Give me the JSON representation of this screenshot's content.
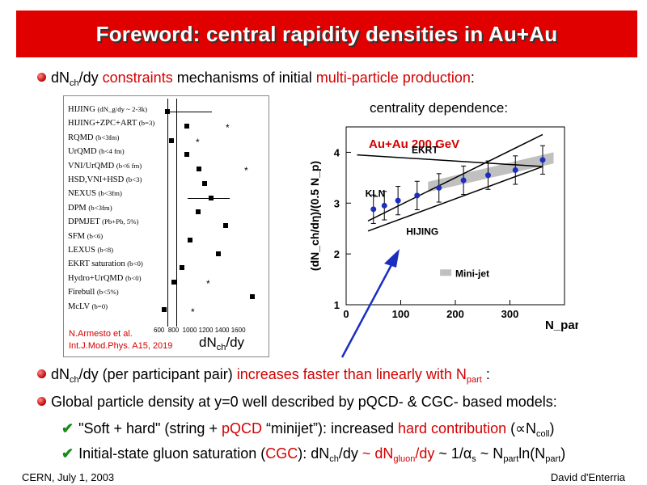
{
  "title": "Foreword: central rapidity densities in Au+Au",
  "bullet1": {
    "pre": "dN",
    "sub": "ch",
    "mid": "/dy ",
    "red1": "constraints",
    "mid2": " mechanisms of initial ",
    "red2": "multi-particle production",
    "post": ":"
  },
  "left_panel": {
    "models": [
      "HIJING",
      "HIJING+ZPC+ART",
      "RQMD",
      "UrQMD",
      "VNI/UrQMD",
      "HSD,VNI+HSD",
      "NEXUS",
      "DPM",
      "DPMJET",
      "SFM",
      "LEXUS",
      "EKRT saturation",
      "Hydro+UrQMD",
      "Firebull",
      "McLV"
    ],
    "model_notes": [
      "(dN_g/dy ~ 2-3k)",
      "(b=3)",
      "(b<3fm)",
      "(b<4 fm)",
      "(b<6 fm)",
      "(b<3)",
      "(b<3fm)",
      "(b<3fm)",
      "(Pb+Pb, 5%)",
      "(b<6)",
      "(b<8)",
      "(b<0)",
      "(b<0)",
      "(b<5%)",
      "(b=0)"
    ],
    "x_ticks": [
      "600",
      "800",
      "1000",
      "1200",
      "1400",
      "1600"
    ],
    "ref_line1": "N.Armesto et al.",
    "ref_line2": "Int.J.Mod.Phys. A15, 2019",
    "dndy_pre": "dN",
    "dndy_sub": "ch",
    "dndy_post": "/dy"
  },
  "centrality_label": "centrality dependence:",
  "chart_data": {
    "type": "scatter",
    "title": "Au+Au 200 GeV",
    "ylabel": "(dN_ch/dη)/(0.5 N_p)",
    "xlabel": "N_part",
    "xlim": [
      0,
      400
    ],
    "ylim": [
      1,
      4.5
    ],
    "x_ticks": [
      "0",
      "100",
      "200",
      "300"
    ],
    "y_ticks": [
      "1",
      "2",
      "3",
      "4"
    ],
    "series": [
      {
        "name": "",
        "x": [
          50,
          70,
          95,
          130,
          170,
          215,
          260,
          310,
          360
        ],
        "y": [
          2.88,
          2.95,
          3.05,
          3.15,
          3.3,
          3.45,
          3.55,
          3.65,
          3.85
        ]
      }
    ],
    "annotations": [
      "EKRT",
      "KLN",
      "HIJING",
      "Mini-jet"
    ],
    "colors": {
      "points": "#1a2fc0",
      "title": "#d40000",
      "arrow": "#1a2fc0",
      "band": "#c0c0c0"
    }
  },
  "bullet2": {
    "pre": "dN",
    "sub": "ch",
    "mid": "/dy (per participant pair) ",
    "red": "increases faster than linearly with N",
    "red_sub": "part",
    "post": " :"
  },
  "bullet3": "Global particle density at y=0 well described by pQCD- & CGC- based models:",
  "check1": {
    "a": "\"Soft + hard\" (string + ",
    "red1": "pQCD",
    "b": " “minijet”): increased ",
    "red2": "hard contribution",
    "c": " (∝N",
    "sub": "coll",
    "d": ")"
  },
  "check2": {
    "a": "Initial-state gluon saturation (",
    "red1": "CGC",
    "b": "): dN",
    "sub1": "ch",
    "c": "/dy ",
    "red2": "~ dN",
    "red_sub": "gluon",
    "red3": "/dy",
    "d": " ~ 1/α",
    "sub2": "s",
    "e": " ~ N",
    "sub3": "part",
    "f": "ln(N",
    "sub4": "part",
    "g": ")"
  },
  "footer_left": "CERN, July 1, 2003",
  "footer_right": "David d'Enterria"
}
